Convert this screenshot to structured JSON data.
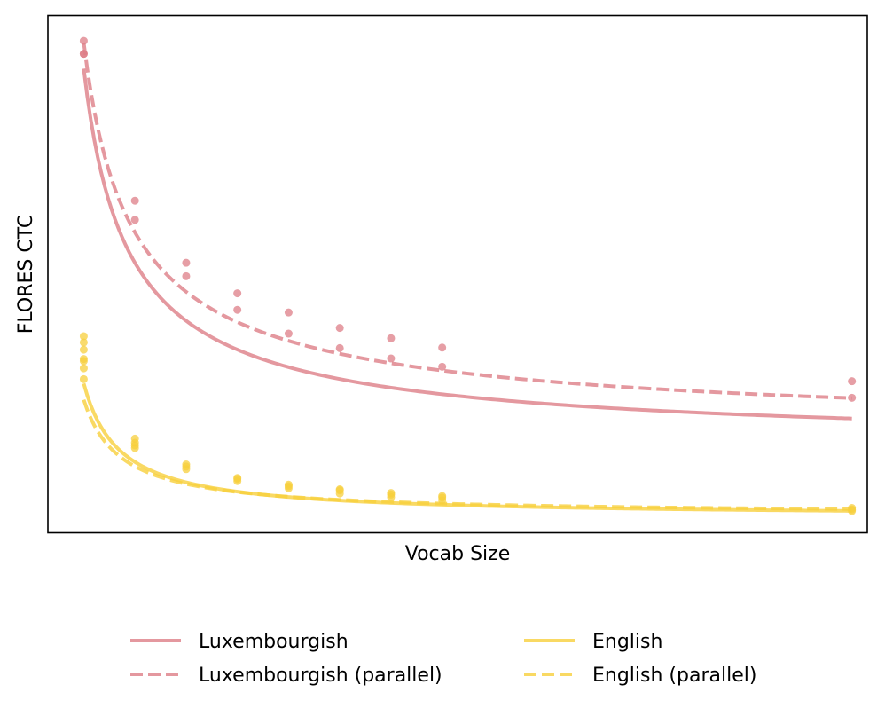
{
  "chart_data": {
    "type": "line",
    "title": "",
    "xlabel": "Vocab Size",
    "ylabel": "FLORES CTC",
    "x_ticks_shown": false,
    "y_ticks_shown": false,
    "grid": false,
    "legend_position": "bottom",
    "legend_columns": 2,
    "xlim": [
      0,
      16.0
    ],
    "ylim": [
      0,
      100
    ],
    "series": [
      {
        "name": "Luxembourgish",
        "style": "solid",
        "color": "#dd7e87",
        "points_x": [
          0.7,
          0.7,
          1.7,
          2.7,
          3.7,
          4.7,
          5.7,
          6.7,
          7.7,
          15.7
        ],
        "points_y": [
          92.6,
          92.6,
          60.5,
          49.6,
          43.1,
          38.5,
          35.7,
          33.7,
          32.1,
          26.1
        ],
        "fit": {
          "a": 16.01,
          "b": 55.38,
          "p": 0.802
        }
      },
      {
        "name": "Luxembourgish (parallel)",
        "style": "dashed",
        "color": "#dd7e87",
        "points_x": [
          0.7,
          1.7,
          2.7,
          3.7,
          4.7,
          5.7,
          6.7,
          7.7,
          15.7
        ],
        "points_y": [
          95.1,
          64.2,
          52.2,
          46.3,
          42.6,
          39.6,
          37.6,
          35.8,
          29.3
        ],
        "fit": {
          "a": 18.31,
          "b": 58.79,
          "p": 0.737
        }
      },
      {
        "name": "English",
        "style": "solid",
        "color": "#f7cf3c",
        "points_x": [
          0.7,
          0.7,
          0.7,
          0.7,
          0.7,
          1.7,
          1.7,
          1.7,
          2.7,
          2.7,
          3.7,
          3.7,
          4.7,
          4.7,
          5.7,
          5.7,
          6.7,
          6.7,
          7.7,
          7.7,
          15.7,
          15.7
        ],
        "points_y": [
          38.0,
          36.8,
          35.4,
          33.6,
          31.8,
          18.2,
          17.4,
          16.4,
          13.2,
          12.3,
          10.6,
          10.0,
          9.3,
          8.6,
          8.4,
          7.6,
          7.7,
          6.9,
          7.1,
          6.3,
          4.8,
          4.2
        ],
        "fit": {
          "a": 3.08,
          "b": 18.04,
          "p": 1.0
        }
      },
      {
        "name": "English (parallel)",
        "style": "dashed",
        "color": "#f7cf3c",
        "points_x": [
          0.7,
          0.7,
          1.7,
          2.7,
          3.7,
          4.7,
          5.7,
          6.7,
          7.7,
          15.7
        ],
        "points_y": [
          29.7,
          33.2,
          16.9,
          12.8,
          10.4,
          9.0,
          8.2,
          7.4,
          6.8,
          4.5
        ],
        "fit": {
          "a": 3.54,
          "b": 15.63,
          "p": 0.98
        }
      }
    ]
  }
}
